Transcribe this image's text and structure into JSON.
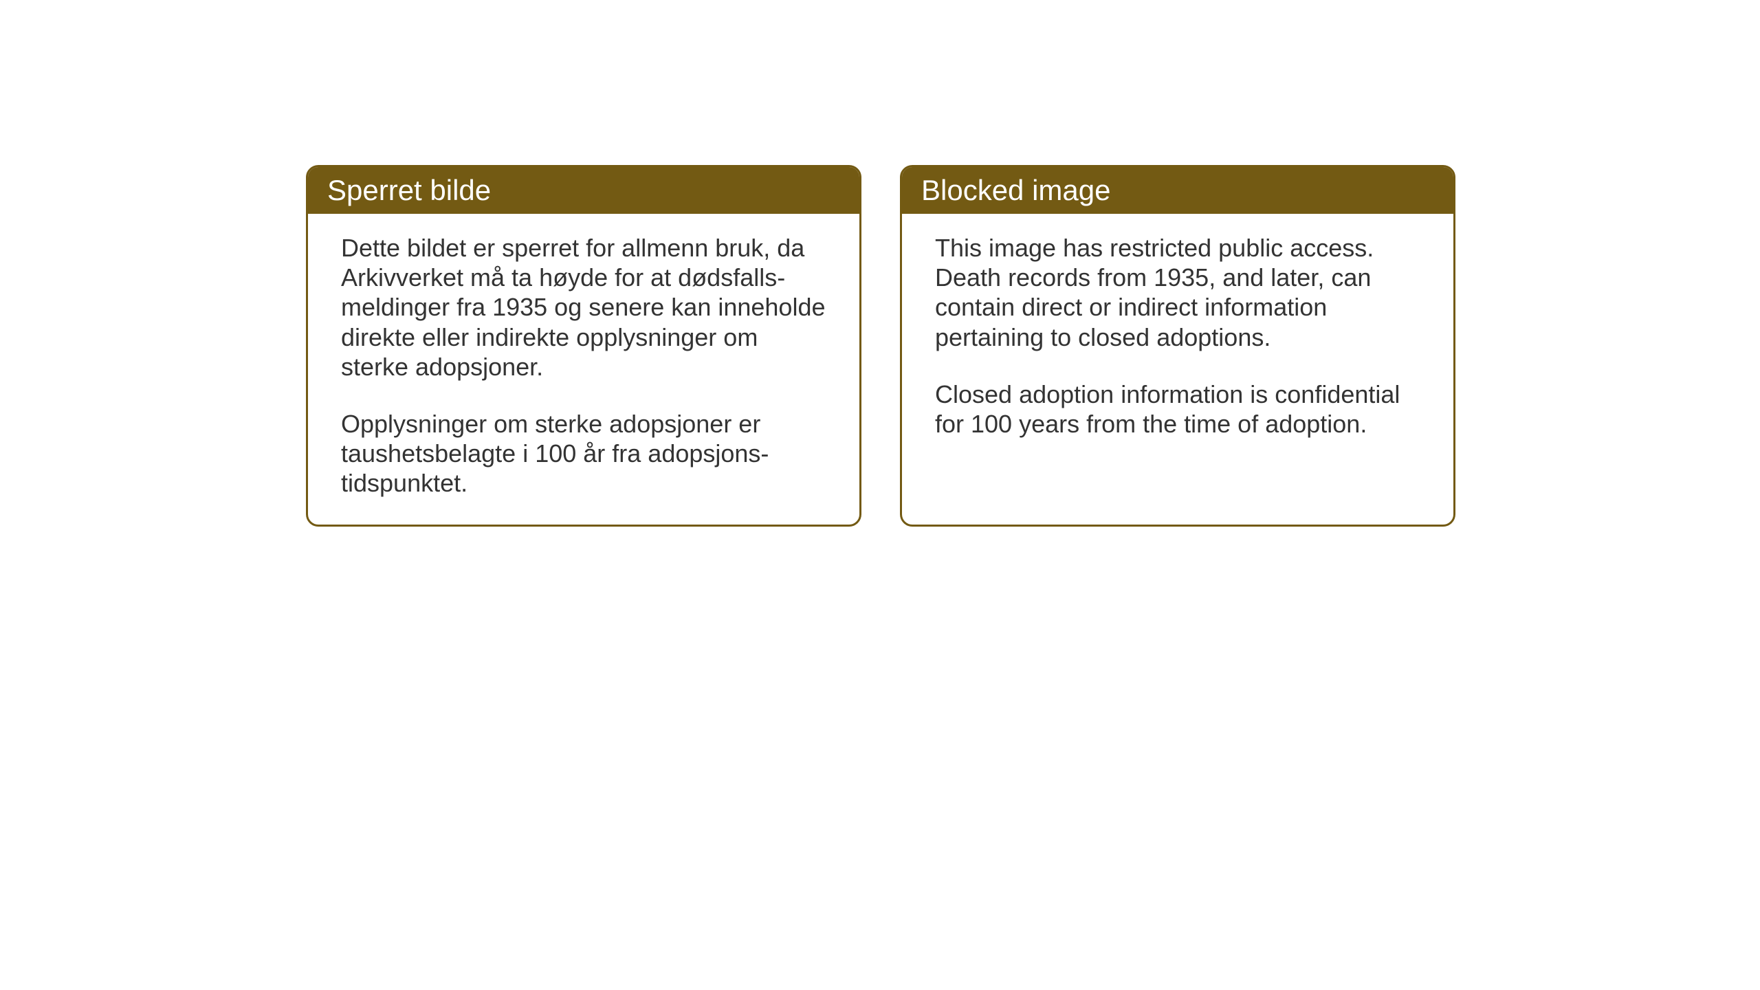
{
  "layout": {
    "background_color": "#ffffff",
    "card_border_color": "#735a13",
    "card_header_bg": "#735a13",
    "card_header_text_color": "#ffffff",
    "card_body_bg": "#ffffff",
    "body_text_color": "#333333",
    "header_fontsize": 42,
    "body_fontsize": 36,
    "border_radius": 18,
    "border_width": 3
  },
  "cards": {
    "norwegian": {
      "title": "Sperret bilde",
      "paragraph1": "Dette bildet er sperret for allmenn bruk, da Arkivverket må ta høyde for at dødsfalls-meldinger fra 1935 og senere kan inneholde direkte eller indirekte opplysninger om sterke adopsjoner.",
      "paragraph2": "Opplysninger om sterke adopsjoner er taushetsbelagte i 100 år fra adopsjons-tidspunktet."
    },
    "english": {
      "title": "Blocked image",
      "paragraph1": "This image has restricted public access. Death records from 1935, and later, can contain direct or indirect information pertaining to closed adoptions.",
      "paragraph2": "Closed adoption information is confidential for 100 years from the time of adoption."
    }
  }
}
